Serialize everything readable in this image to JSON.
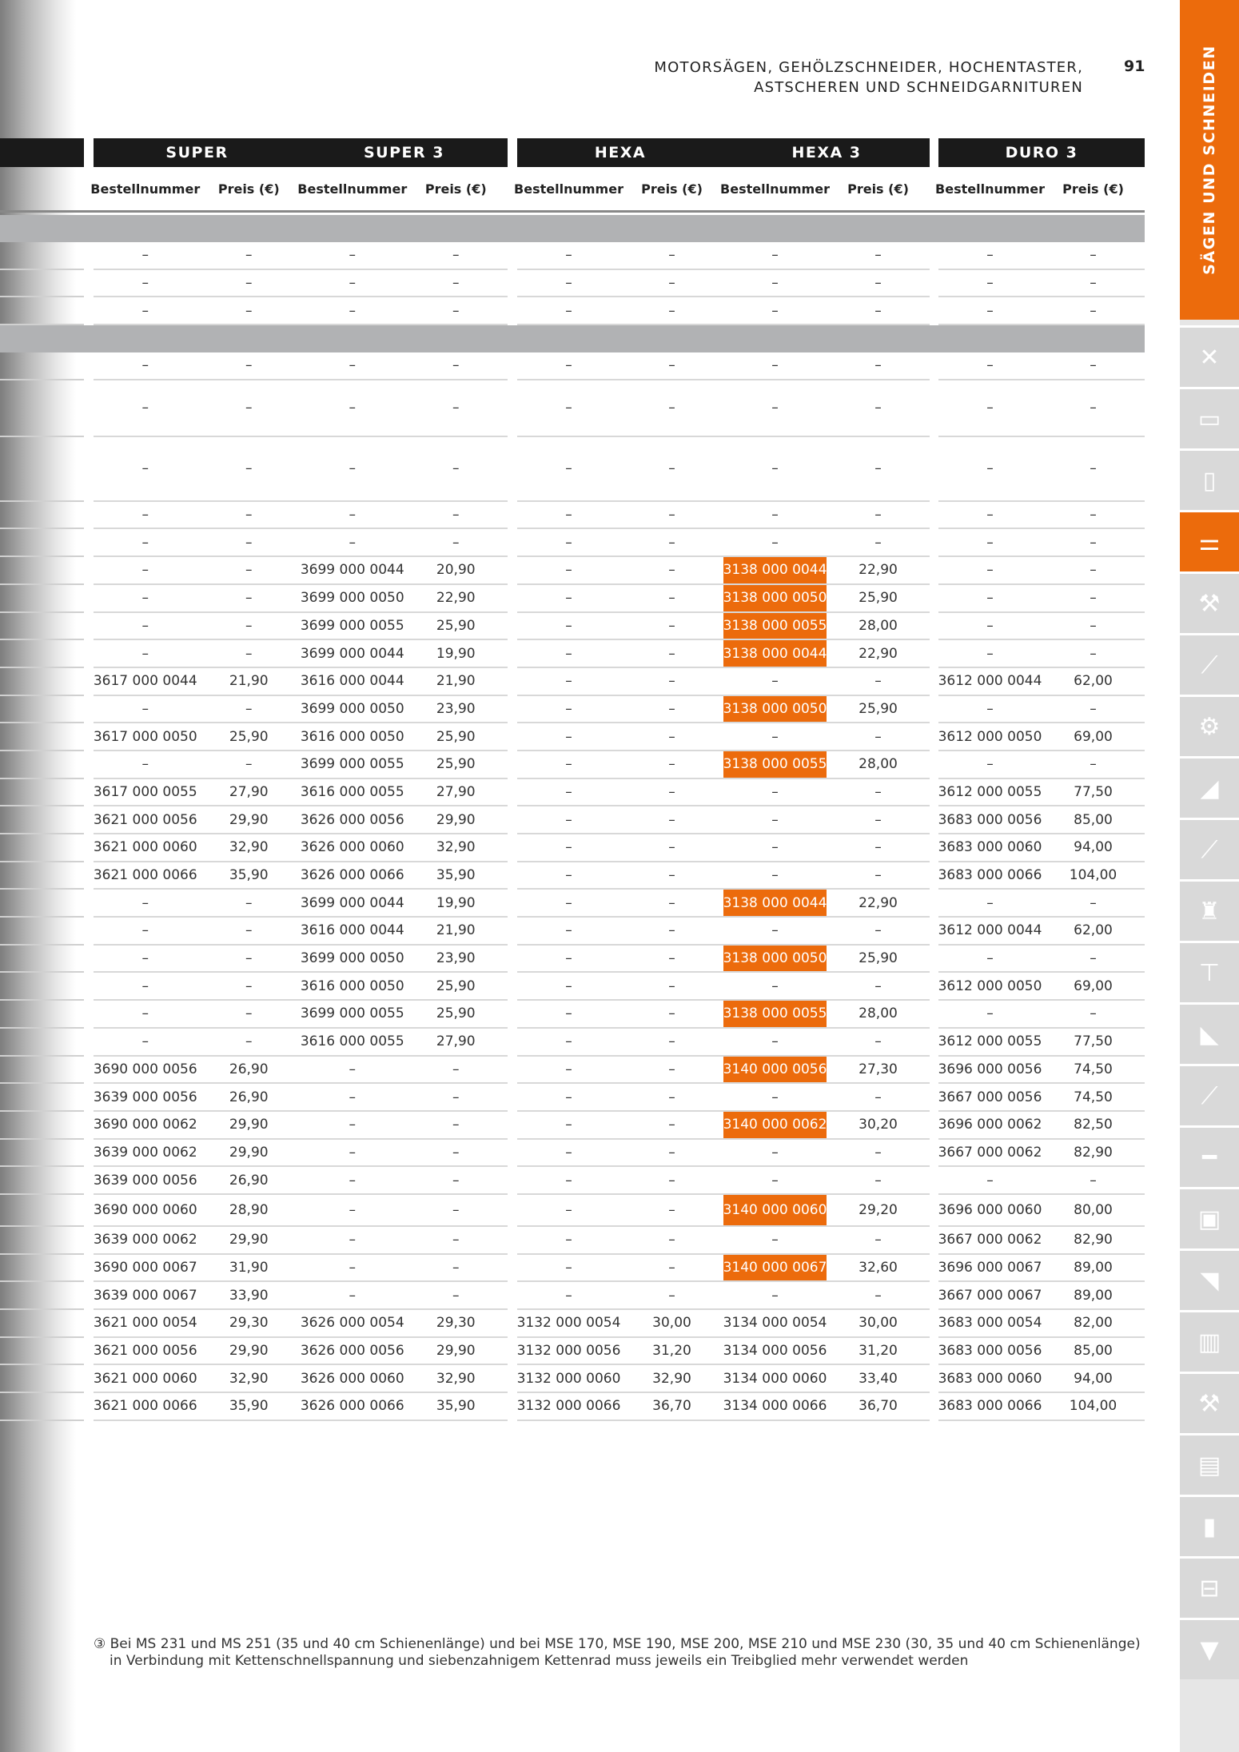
{
  "header": {
    "title_line1": "MOTORSÄGEN, GEHÖLZSCHNEIDER, HOCHENTASTER,",
    "title_line2": "ASTSCHEREN UND SCHNEIDGARNITUREN",
    "page_number": "91"
  },
  "sidebar": {
    "section_label": "SÄGEN UND SCHNEIDEN",
    "accent_color": "#ec6b0c",
    "tiles": [
      {
        "icon": "tools-icon",
        "glyph": "✕",
        "active": false
      },
      {
        "icon": "battery-icon",
        "glyph": "▭",
        "active": false
      },
      {
        "icon": "tablet-icon",
        "glyph": "▯",
        "active": false
      },
      {
        "icon": "saw-chain-icon",
        "glyph": "⚌",
        "active": true
      },
      {
        "icon": "chainsaw-icon",
        "glyph": "⚒",
        "active": false
      },
      {
        "icon": "brushcutter-icon",
        "glyph": "⟋",
        "active": false
      },
      {
        "icon": "cutoff-saw-icon",
        "glyph": "⚙",
        "active": false
      },
      {
        "icon": "lawnmower-icon",
        "glyph": "◢",
        "active": false
      },
      {
        "icon": "trimmer-icon",
        "glyph": "⟋",
        "active": false
      },
      {
        "icon": "sprayer-icon",
        "glyph": "♜",
        "active": false
      },
      {
        "icon": "earth-auger-icon",
        "glyph": "⊤",
        "active": false
      },
      {
        "icon": "blower-icon",
        "glyph": "◣",
        "active": false
      },
      {
        "icon": "pole-pruner-icon",
        "glyph": "⟋",
        "active": false
      },
      {
        "icon": "hedge-trimmer-icon",
        "glyph": "━",
        "active": false
      },
      {
        "icon": "shredder-icon",
        "glyph": "▣",
        "active": false
      },
      {
        "icon": "robot-mower-icon",
        "glyph": "◥",
        "active": false
      },
      {
        "icon": "jacket-icon",
        "glyph": "▥",
        "active": false
      },
      {
        "icon": "axe-icon",
        "glyph": "⚒",
        "active": false
      },
      {
        "icon": "manual-icon",
        "glyph": "▤",
        "active": false
      },
      {
        "icon": "spray-bottle-icon",
        "glyph": "▮",
        "active": false
      },
      {
        "icon": "toolbox-icon",
        "glyph": "⊟",
        "active": false
      },
      {
        "icon": "shirt-icon",
        "glyph": "▼",
        "active": false
      }
    ]
  },
  "table": {
    "groups": [
      {
        "labels": [
          "SUPER",
          "SUPER 3"
        ]
      },
      {
        "labels": [
          "HEXA",
          "HEXA 3"
        ]
      },
      {
        "labels": [
          "DURO 3"
        ]
      }
    ],
    "column_headers": [
      "Bestellnummer",
      "Preis (€)",
      "Bestellnummer",
      "Preis (€)",
      "Bestellnummer",
      "Preis (€)",
      "Bestellnummer",
      "Preis (€)",
      "Bestellnummer",
      "Preis (€)"
    ],
    "highlight_color": "#ec6b0c",
    "rows": [
      {
        "band": true
      },
      {
        "cells": [
          "–",
          "–",
          "–",
          "–",
          "–",
          "–",
          "–",
          "–",
          "–",
          "–"
        ]
      },
      {
        "cells": [
          "–",
          "–",
          "–",
          "–",
          "–",
          "–",
          "–",
          "–",
          "–",
          "–"
        ]
      },
      {
        "cells": [
          "–",
          "–",
          "–",
          "–",
          "–",
          "–",
          "–",
          "–",
          "–",
          "–"
        ]
      },
      {
        "band": true
      },
      {
        "cells": [
          "–",
          "–",
          "–",
          "–",
          "–",
          "–",
          "–",
          "–",
          "–",
          "–"
        ]
      },
      {
        "cells": [
          "–",
          "–",
          "–",
          "–",
          "–",
          "–",
          "–",
          "–",
          "–",
          "–"
        ]
      },
      {
        "cells": [
          "–",
          "–",
          "–",
          "–",
          "–",
          "–",
          "–",
          "–",
          "–",
          "–"
        ]
      },
      {
        "cells": [
          "–",
          "–",
          "–",
          "–",
          "–",
          "–",
          "–",
          "–",
          "–",
          "–"
        ]
      },
      {
        "cells": [
          "–",
          "–",
          "–",
          "–",
          "–",
          "–",
          "–",
          "–",
          "–",
          "–"
        ]
      },
      {
        "cells": [
          "–",
          "–",
          "3699 000 0044",
          "20,90",
          "–",
          "–",
          "3138 000 0044",
          "22,90",
          "–",
          "–"
        ],
        "highlight": true
      },
      {
        "cells": [
          "–",
          "–",
          "3699 000 0050",
          "22,90",
          "–",
          "–",
          "3138 000 0050",
          "25,90",
          "–",
          "–"
        ],
        "highlight": true
      },
      {
        "cells": [
          "–",
          "–",
          "3699 000 0055",
          "25,90",
          "–",
          "–",
          "3138 000 0055",
          "28,00",
          "–",
          "–"
        ],
        "highlight": true
      },
      {
        "cells": [
          "–",
          "–",
          "3699 000 0044",
          "19,90",
          "–",
          "–",
          "3138 000 0044",
          "22,90",
          "–",
          "–"
        ],
        "highlight": true
      },
      {
        "cells": [
          "3617 000 0044",
          "21,90",
          "3616 000 0044",
          "21,90",
          "–",
          "–",
          "–",
          "–",
          "3612 000 0044",
          "62,00"
        ]
      },
      {
        "cells": [
          "–",
          "–",
          "3699 000 0050",
          "23,90",
          "–",
          "–",
          "3138 000 0050",
          "25,90",
          "–",
          "–"
        ],
        "highlight": true
      },
      {
        "cells": [
          "3617 000 0050",
          "25,90",
          "3616 000 0050",
          "25,90",
          "–",
          "–",
          "–",
          "–",
          "3612 000 0050",
          "69,00"
        ]
      },
      {
        "cells": [
          "–",
          "–",
          "3699 000 0055",
          "25,90",
          "–",
          "–",
          "3138 000 0055",
          "28,00",
          "–",
          "–"
        ],
        "highlight": true
      },
      {
        "cells": [
          "3617 000 0055",
          "27,90",
          "3616 000 0055",
          "27,90",
          "–",
          "–",
          "–",
          "–",
          "3612 000 0055",
          "77,50"
        ]
      },
      {
        "cells": [
          "3621 000 0056",
          "29,90",
          "3626 000 0056",
          "29,90",
          "–",
          "–",
          "–",
          "–",
          "3683 000 0056",
          "85,00"
        ]
      },
      {
        "cells": [
          "3621 000 0060",
          "32,90",
          "3626 000 0060",
          "32,90",
          "–",
          "–",
          "–",
          "–",
          "3683 000 0060",
          "94,00"
        ]
      },
      {
        "cells": [
          "3621 000 0066",
          "35,90",
          "3626 000 0066",
          "35,90",
          "–",
          "–",
          "–",
          "–",
          "3683 000 0066",
          "104,00"
        ]
      },
      {
        "cells": [
          "–",
          "–",
          "3699 000 0044",
          "19,90",
          "–",
          "–",
          "3138 000 0044",
          "22,90",
          "–",
          "–"
        ],
        "highlight": true
      },
      {
        "cells": [
          "–",
          "–",
          "3616 000 0044",
          "21,90",
          "–",
          "–",
          "–",
          "–",
          "3612 000 0044",
          "62,00"
        ]
      },
      {
        "cells": [
          "–",
          "–",
          "3699 000 0050",
          "23,90",
          "–",
          "–",
          "3138 000 0050",
          "25,90",
          "–",
          "–"
        ],
        "highlight": true
      },
      {
        "cells": [
          "–",
          "–",
          "3616 000 0050",
          "25,90",
          "–",
          "–",
          "–",
          "–",
          "3612 000 0050",
          "69,00"
        ]
      },
      {
        "cells": [
          "–",
          "–",
          "3699 000 0055",
          "25,90",
          "–",
          "–",
          "3138 000 0055",
          "28,00",
          "–",
          "–"
        ],
        "highlight": true
      },
      {
        "cells": [
          "–",
          "–",
          "3616 000 0055",
          "27,90",
          "–",
          "–",
          "–",
          "–",
          "3612 000 0055",
          "77,50"
        ]
      },
      {
        "cells": [
          "3690 000 0056",
          "26,90",
          "–",
          "–",
          "–",
          "–",
          "3140 000 0056",
          "27,30",
          "3696 000 0056",
          "74,50"
        ],
        "highlight": true
      },
      {
        "cells": [
          "3639 000 0056",
          "26,90",
          "–",
          "–",
          "–",
          "–",
          "–",
          "–",
          "3667 000 0056",
          "74,50"
        ]
      },
      {
        "cells": [
          "3690 000 0062",
          "29,90",
          "–",
          "–",
          "–",
          "–",
          "3140 000 0062",
          "30,20",
          "3696 000 0062",
          "82,50"
        ],
        "highlight": true
      },
      {
        "cells": [
          "3639 000 0062",
          "29,90",
          "–",
          "–",
          "–",
          "–",
          "–",
          "–",
          "3667 000 0062",
          "82,90"
        ]
      },
      {
        "cells": [
          "3639 000 0056",
          "26,90",
          "–",
          "–",
          "–",
          "–",
          "–",
          "–",
          "–",
          "–"
        ]
      },
      {
        "cells": [
          "3690 000 0060",
          "28,90",
          "–",
          "–",
          "–",
          "–",
          "3140 000 0060",
          "29,20",
          "3696 000 0060",
          "80,00"
        ],
        "highlight": true
      },
      {
        "cells": [
          "3639 000 0062",
          "29,90",
          "–",
          "–",
          "–",
          "–",
          "–",
          "–",
          "3667 000 0062",
          "82,90"
        ]
      },
      {
        "cells": [
          "3690 000 0067",
          "31,90",
          "–",
          "–",
          "–",
          "–",
          "3140 000 0067",
          "32,60",
          "3696 000 0067",
          "89,00"
        ],
        "highlight": true
      },
      {
        "cells": [
          "3639 000 0067",
          "33,90",
          "–",
          "–",
          "–",
          "–",
          "–",
          "–",
          "3667 000 0067",
          "89,00"
        ]
      },
      {
        "cells": [
          "3621 000 0054",
          "29,30",
          "3626 000 0054",
          "29,30",
          "3132 000 0054",
          "30,00",
          "3134 000 0054",
          "30,00",
          "3683 000 0054",
          "82,00"
        ]
      },
      {
        "cells": [
          "3621 000 0056",
          "29,90",
          "3626 000 0056",
          "29,90",
          "3132 000 0056",
          "31,20",
          "3134 000 0056",
          "31,20",
          "3683 000 0056",
          "85,00"
        ]
      },
      {
        "cells": [
          "3621 000 0060",
          "32,90",
          "3626 000 0060",
          "32,90",
          "3132 000 0060",
          "32,90",
          "3134 000 0060",
          "33,40",
          "3683 000 0060",
          "94,00"
        ]
      },
      {
        "cells": [
          "3621 000 0066",
          "35,90",
          "3626 000 0066",
          "35,90",
          "3132 000 0066",
          "36,70",
          "3134 000 0066",
          "36,70",
          "3683 000 0066",
          "104,00"
        ]
      }
    ]
  },
  "footer": {
    "line1": "③ Bei MS 231 und MS 251 (35 und 40 cm Schienenlänge) und bei  MSE 170, MSE 190, MSE 200, MSE 210 und MSE 230 (30, 35 und 40 cm Schienenlänge)",
    "line2": "in Verbindung mit Kettenschnellspannung und siebenzahnigem Kettenrad muss jeweils ein Treibglied mehr verwendet werden"
  }
}
